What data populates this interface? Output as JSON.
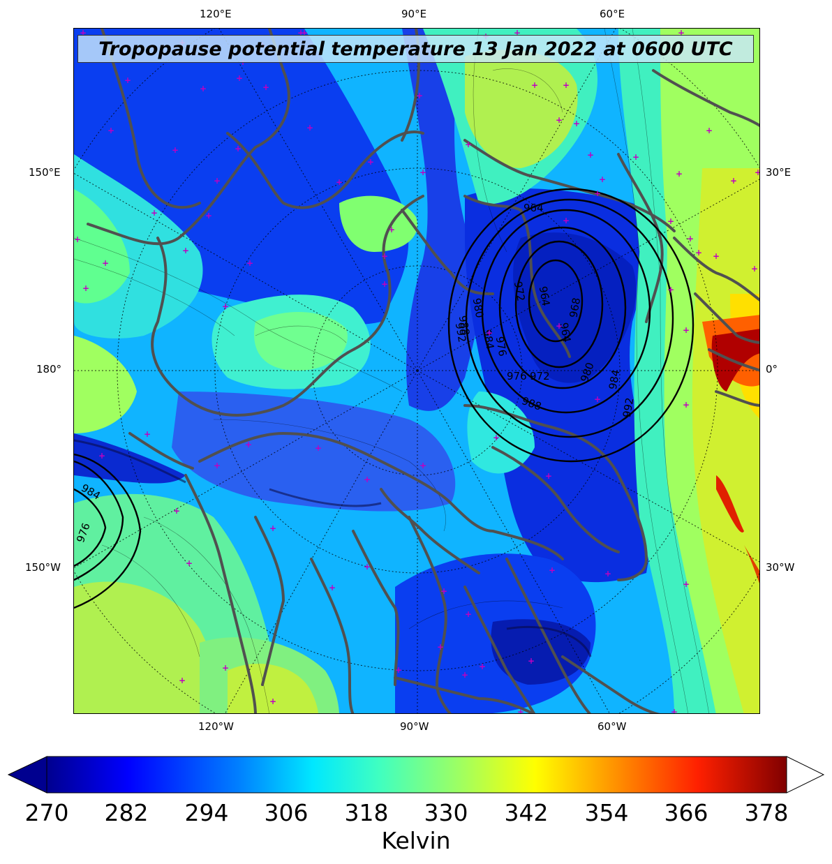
{
  "map": {
    "title": "Tropopause potential temperature 13 Jan 2022 at 0600 UTC",
    "longitude_labels": {
      "top": [
        "120°E",
        "90°E",
        "60°E"
      ],
      "bottom": [
        "120°W",
        "90°W",
        "60°W"
      ],
      "left": [
        "150°E",
        "180°",
        "150°W"
      ],
      "right": [
        "30°E",
        "0°",
        "30°W"
      ]
    },
    "pressure_contours_hPa": [
      "964",
      "964",
      "964",
      "968",
      "972",
      "972",
      "976",
      "976",
      "980",
      "980",
      "984",
      "984",
      "988",
      "988",
      "992",
      "992",
      "976",
      "984"
    ],
    "projection": "north polar stereographic",
    "colormap": "jet",
    "coastline_color": "#505050",
    "marker_color": "#c000c0",
    "contour_color": "#000000"
  },
  "colorbar": {
    "label": "Kelvin",
    "ticks": [
      "270",
      "282",
      "294",
      "306",
      "318",
      "330",
      "342",
      "354",
      "366",
      "378"
    ],
    "range": [
      270,
      381
    ],
    "extend": "both",
    "stops": [
      "#00008f",
      "#0000ff",
      "#0080ff",
      "#00e8ff",
      "#40ffc0",
      "#a0ff60",
      "#ffff00",
      "#ff9000",
      "#ff2000",
      "#800000"
    ]
  }
}
